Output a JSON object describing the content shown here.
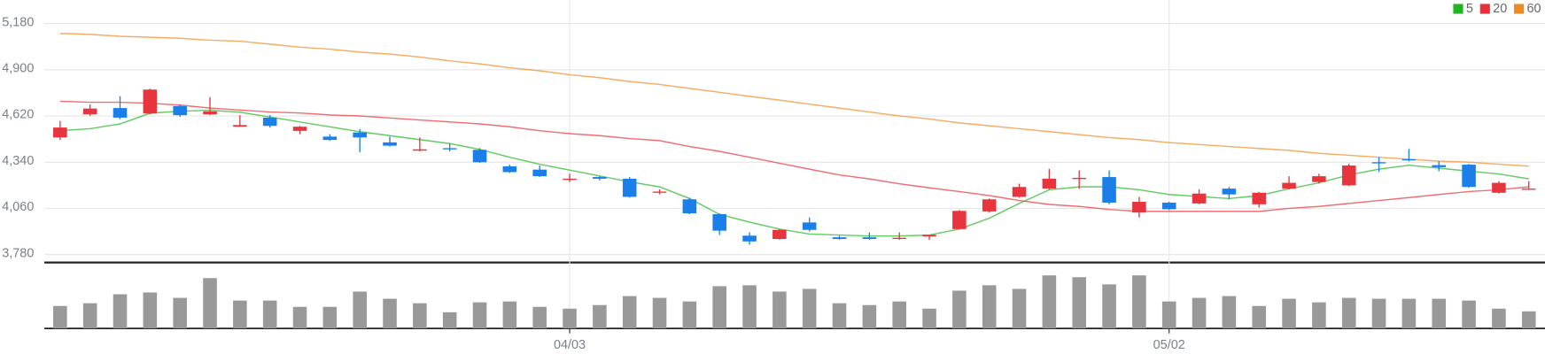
{
  "chart_data": {
    "type": "candlestick",
    "categories": [
      null,
      null,
      null,
      null,
      null,
      null,
      null,
      null,
      null,
      null,
      null,
      null,
      null,
      null,
      null,
      null,
      null,
      "04/03",
      null,
      null,
      null,
      null,
      null,
      null,
      null,
      null,
      null,
      null,
      null,
      null,
      null,
      null,
      null,
      null,
      null,
      null,
      null,
      "05/02",
      null,
      null,
      null,
      null,
      null,
      null,
      null,
      null,
      null,
      null,
      null,
      null
    ],
    "open": [
      4490,
      4630,
      4668,
      4635,
      4680,
      4630,
      4555,
      4610,
      4530,
      4495,
      4520,
      4460,
      4410,
      4425,
      4415,
      4315,
      4295,
      4235,
      4250,
      4240,
      4155,
      4115,
      4025,
      3895,
      3875,
      3975,
      3885,
      3885,
      3878,
      3890,
      3935,
      4042,
      4130,
      4180,
      4240,
      4250,
      4035,
      4095,
      4090,
      4180,
      4085,
      4180,
      4220,
      4200,
      4340,
      4358,
      4322,
      4325,
      4155,
      4175
    ],
    "high": [
      4590,
      4690,
      4740,
      4785,
      4690,
      4735,
      4625,
      4625,
      4560,
      4510,
      4540,
      4495,
      4490,
      4452,
      4425,
      4325,
      4320,
      4270,
      4255,
      4250,
      4175,
      4125,
      4030,
      3915,
      3935,
      4005,
      3895,
      3915,
      3915,
      3900,
      4050,
      4120,
      4210,
      4300,
      4290,
      4290,
      4130,
      4100,
      4175,
      4190,
      4160,
      4255,
      4270,
      4330,
      4370,
      4420,
      4345,
      4330,
      4225,
      4225
    ],
    "low": [
      4475,
      4620,
      4600,
      4630,
      4615,
      4625,
      4555,
      4550,
      4510,
      4470,
      4400,
      4435,
      4405,
      4405,
      4335,
      4275,
      4250,
      4220,
      4230,
      4125,
      4145,
      4025,
      3900,
      3840,
      3870,
      3920,
      3870,
      3870,
      3870,
      3870,
      3935,
      4035,
      4125,
      4175,
      4180,
      4085,
      4005,
      4050,
      4085,
      4115,
      4065,
      4175,
      4210,
      4195,
      4280,
      4345,
      4285,
      4185,
      4150,
      4172
    ],
    "close": [
      4550,
      4665,
      4610,
      4780,
      4625,
      4648,
      4565,
      4560,
      4555,
      4475,
      4490,
      4440,
      4418,
      4418,
      4340,
      4280,
      4255,
      4240,
      4240,
      4130,
      4162,
      4030,
      3925,
      3860,
      3930,
      3930,
      3875,
      3875,
      3882,
      3900,
      4045,
      4115,
      4190,
      4240,
      4245,
      4095,
      4100,
      4055,
      4150,
      4145,
      4155,
      4215,
      4255,
      4320,
      4333,
      4352,
      4310,
      4190,
      4215,
      4180
    ],
    "up_color": "#e8343c",
    "down_color": "#1a7fe8",
    "series": [
      {
        "name": "5",
        "color": "#22b422",
        "values": [
          4531,
          4543,
          4572,
          4637,
          4649,
          4655,
          4643,
          4614,
          4584,
          4554,
          4525,
          4501,
          4477,
          4453,
          4418,
          4370,
          4328,
          4292,
          4257,
          4221,
          4191,
          4120,
          4024,
          3977,
          3935,
          3905,
          3899,
          3893,
          3893,
          3899,
          3935,
          4001,
          4090,
          4173,
          4191,
          4191,
          4173,
          4144,
          4132,
          4120,
          4138,
          4179,
          4215,
          4263,
          4298,
          4322,
          4304,
          4286,
          4269,
          4239
        ]
      },
      {
        "name": "20",
        "color": "#e8303a",
        "values": [
          4709,
          4703,
          4703,
          4697,
          4686,
          4668,
          4656,
          4644,
          4638,
          4626,
          4620,
          4608,
          4596,
          4584,
          4572,
          4555,
          4531,
          4513,
          4501,
          4483,
          4471,
          4435,
          4406,
          4370,
          4334,
          4298,
          4263,
          4239,
          4209,
          4185,
          4162,
          4138,
          4108,
          4084,
          4072,
          4054,
          4042,
          4042,
          4042,
          4042,
          4042,
          4060,
          4072,
          4090,
          4108,
          4126,
          4144,
          4162,
          4173,
          4191
        ]
      },
      {
        "name": "60",
        "color": "#f08a24",
        "values": [
          5120,
          5114,
          5103,
          5097,
          5091,
          5079,
          5073,
          5055,
          5037,
          5025,
          5007,
          4995,
          4977,
          4954,
          4936,
          4912,
          4894,
          4870,
          4852,
          4829,
          4811,
          4787,
          4763,
          4739,
          4716,
          4692,
          4668,
          4644,
          4620,
          4602,
          4578,
          4561,
          4543,
          4525,
          4507,
          4489,
          4477,
          4459,
          4447,
          4435,
          4423,
          4412,
          4394,
          4382,
          4370,
          4358,
          4346,
          4340,
          4328,
          4316
        ]
      }
    ],
    "volume": [
      25,
      28,
      38,
      40,
      34,
      56,
      31,
      31,
      24,
      24,
      41,
      33,
      28,
      18,
      29,
      30,
      24,
      22,
      26,
      36,
      34,
      30,
      47,
      48,
      41,
      44,
      28,
      26,
      30,
      22,
      42,
      48,
      44,
      59,
      57,
      49,
      59,
      30,
      34,
      36,
      25,
      33,
      29,
      34,
      33,
      33,
      33,
      31,
      22,
      19
    ],
    "volume_color": "#999999",
    "volume_lim": [
      0,
      70
    ],
    "ylim": [
      3738,
      5275
    ],
    "yticks": [
      {
        "value": 3780,
        "label": "3,780"
      },
      {
        "value": 4060,
        "label": "4,060"
      },
      {
        "value": 4340,
        "label": "4,340"
      },
      {
        "value": 4620,
        "label": "4,620"
      },
      {
        "value": 4900,
        "label": "4,900"
      },
      {
        "value": 5180,
        "label": "5,180"
      }
    ],
    "grid": true,
    "legend": "top-right"
  }
}
